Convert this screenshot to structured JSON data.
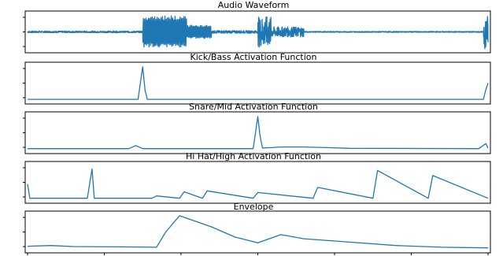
{
  "chart_data": [
    {
      "type": "line",
      "title": "Audio Waveform",
      "xlim": [
        0,
        1
      ],
      "ylim": [
        -1,
        1
      ],
      "color": "#1f77b4",
      "segments": [
        {
          "x_start": 0.0,
          "x_end": 0.25,
          "amplitude": 0.05
        },
        {
          "x_start": 0.25,
          "x_end": 0.345,
          "amplitude": 0.95
        },
        {
          "x_start": 0.345,
          "x_end": 0.4,
          "amplitude": 0.4
        },
        {
          "x_start": 0.4,
          "x_end": 0.5,
          "amplitude": 0.08
        },
        {
          "x_start": 0.5,
          "x_end": 0.53,
          "amplitude": 0.9
        },
        {
          "x_start": 0.53,
          "x_end": 0.6,
          "amplitude": 0.3
        },
        {
          "x_start": 0.6,
          "x_end": 0.99,
          "amplitude": 0.03
        },
        {
          "x_start": 0.99,
          "x_end": 1.0,
          "amplitude": 1.0
        }
      ]
    },
    {
      "type": "line",
      "title": "Kick/Bass Activation Function",
      "xlim": [
        0,
        1
      ],
      "ylim": [
        0,
        1
      ],
      "color": "#1f77b4",
      "x": [
        0.0,
        0.24,
        0.245,
        0.25,
        0.255,
        0.26,
        0.99,
        0.995,
        1.0
      ],
      "values": [
        0.02,
        0.02,
        0.5,
        0.98,
        0.3,
        0.02,
        0.02,
        0.3,
        0.5
      ]
    },
    {
      "type": "line",
      "title": "Snare/Mid Activation Function",
      "xlim": [
        0,
        1
      ],
      "ylim": [
        0,
        1
      ],
      "color": "#1f77b4",
      "x": [
        0.0,
        0.22,
        0.235,
        0.25,
        0.49,
        0.495,
        0.5,
        0.505,
        0.51,
        0.53,
        0.55,
        0.6,
        0.65,
        0.7,
        0.98,
        0.995,
        1.0
      ],
      "values": [
        0.03,
        0.03,
        0.12,
        0.03,
        0.03,
        0.5,
        0.98,
        0.4,
        0.05,
        0.06,
        0.08,
        0.08,
        0.06,
        0.04,
        0.03,
        0.18,
        0.05
      ]
    },
    {
      "type": "line",
      "title": "Hi Hat/High Activation Function",
      "xlim": [
        0,
        1
      ],
      "ylim": [
        0,
        1
      ],
      "color": "#1f77b4",
      "x": [
        0.0,
        0.005,
        0.13,
        0.14,
        0.145,
        0.27,
        0.28,
        0.33,
        0.34,
        0.38,
        0.39,
        0.49,
        0.5,
        0.62,
        0.63,
        0.75,
        0.76,
        0.87,
        0.88,
        1.0
      ],
      "values": [
        0.45,
        0.03,
        0.03,
        0.9,
        0.03,
        0.03,
        0.1,
        0.03,
        0.22,
        0.03,
        0.25,
        0.03,
        0.2,
        0.03,
        0.35,
        0.03,
        0.85,
        0.03,
        0.7,
        0.03
      ]
    },
    {
      "type": "line",
      "title": "Envelope",
      "xlim": [
        0,
        1
      ],
      "ylim": [
        0,
        1
      ],
      "color": "#1f77b4",
      "x": [
        0.0,
        0.05,
        0.1,
        0.2,
        0.28,
        0.3,
        0.33,
        0.4,
        0.45,
        0.5,
        0.55,
        0.6,
        0.7,
        0.8,
        0.9,
        1.0
      ],
      "values": [
        0.08,
        0.1,
        0.07,
        0.06,
        0.05,
        0.5,
        0.98,
        0.65,
        0.35,
        0.18,
        0.42,
        0.3,
        0.2,
        0.1,
        0.05,
        0.03
      ]
    }
  ]
}
